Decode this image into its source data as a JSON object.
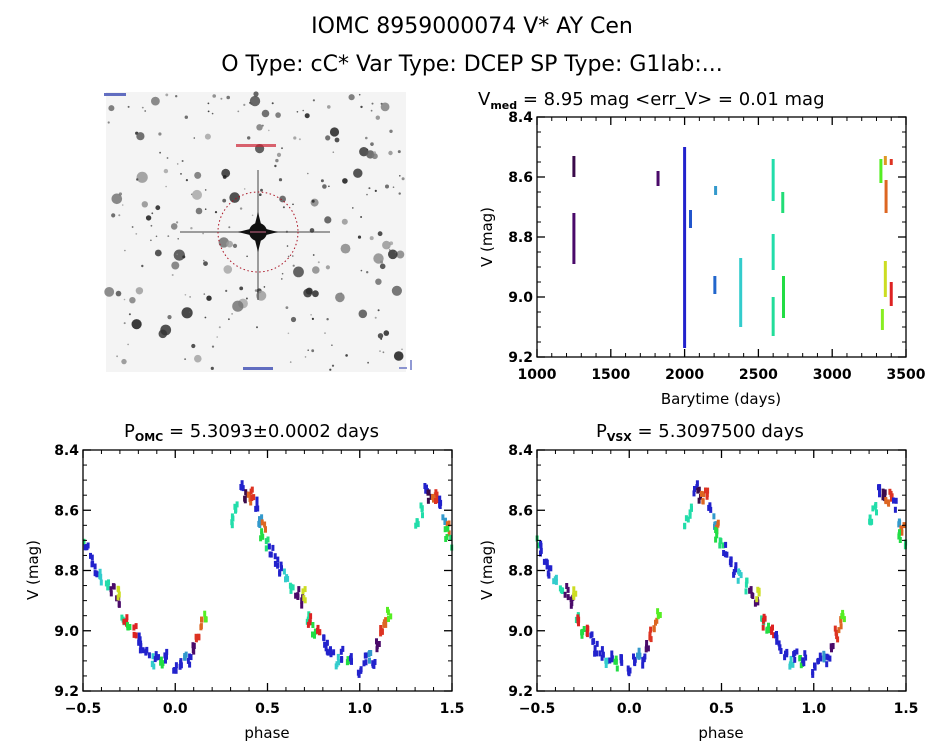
{
  "header": {
    "title": "IOMC 8959000074    V* AY Cen",
    "subtitle": "O Type: cC*   Var Type: DCEP   SP Type: G1Iab:..."
  },
  "finder_image": {
    "description": "Sky image centered on target with red dotted aperture circle"
  },
  "chart_data": [
    {
      "type": "scatter",
      "id": "light-curve",
      "title_main": "V",
      "title_sub": "med",
      "title_rest": " = 8.95 mag <err_V> = 0.01 mag",
      "xlabel": "Barytime (days)",
      "ylabel": "V (mag)",
      "xlim": [
        1000,
        3500
      ],
      "ylim": [
        8.4,
        9.2
      ],
      "y_inverted": true,
      "xticks": [
        1000,
        1500,
        2000,
        2500,
        3000,
        3500
      ],
      "yticks": [
        "8.4",
        "8.6",
        "8.8",
        "9.0",
        "9.2"
      ],
      "segments": [
        {
          "x": 1250,
          "y0": 8.53,
          "y1": 8.6,
          "color": "#3a0a4a"
        },
        {
          "x": 1250,
          "y0": 8.72,
          "y1": 8.89,
          "color": "#4a0a6a"
        },
        {
          "x": 1820,
          "y0": 8.58,
          "y1": 8.63,
          "color": "#4a0a6a"
        },
        {
          "x": 2000,
          "y0": 8.5,
          "y1": 9.17,
          "color": "#2222cc"
        },
        {
          "x": 2040,
          "y0": 8.71,
          "y1": 8.77,
          "color": "#2255cc"
        },
        {
          "x": 2210,
          "y0": 8.63,
          "y1": 8.66,
          "color": "#3399cc"
        },
        {
          "x": 2205,
          "y0": 8.93,
          "y1": 8.99,
          "color": "#2266cc"
        },
        {
          "x": 2380,
          "y0": 8.87,
          "y1": 9.1,
          "color": "#33cccc"
        },
        {
          "x": 2600,
          "y0": 8.54,
          "y1": 8.68,
          "color": "#22ddaa"
        },
        {
          "x": 2600,
          "y0": 8.79,
          "y1": 8.91,
          "color": "#22ddaa"
        },
        {
          "x": 2600,
          "y0": 9.0,
          "y1": 9.13,
          "color": "#22dd99"
        },
        {
          "x": 2665,
          "y0": 8.65,
          "y1": 8.72,
          "color": "#22dd77"
        },
        {
          "x": 2670,
          "y0": 8.93,
          "y1": 9.07,
          "color": "#22dd44"
        },
        {
          "x": 3330,
          "y0": 8.54,
          "y1": 8.62,
          "color": "#55ee22"
        },
        {
          "x": 3340,
          "y0": 9.04,
          "y1": 9.11,
          "color": "#88ee22"
        },
        {
          "x": 3360,
          "y0": 8.53,
          "y1": 8.56,
          "color": "#dd9922"
        },
        {
          "x": 3365,
          "y0": 8.61,
          "y1": 8.72,
          "color": "#dd6622"
        },
        {
          "x": 3360,
          "y0": 8.88,
          "y1": 9.0,
          "color": "#ccdd22"
        },
        {
          "x": 3400,
          "y0": 8.54,
          "y1": 8.56,
          "color": "#dd3322"
        },
        {
          "x": 3400,
          "y0": 8.95,
          "y1": 9.03,
          "color": "#dd2222"
        }
      ]
    },
    {
      "type": "scatter",
      "id": "phase-omc",
      "title_main": "P",
      "title_sub": "OMC",
      "title_rest": " = 5.3093±0.0002 days",
      "xlabel": "phase",
      "ylabel": "V (mag)",
      "xlim": [
        -0.5,
        1.5
      ],
      "ylim": [
        8.4,
        9.2
      ],
      "y_inverted": true,
      "xticks": [
        "-0.5",
        "0.0",
        "0.5",
        "1.0",
        "1.5"
      ],
      "yticks": [
        "8.4",
        "8.6",
        "8.8",
        "9.0",
        "9.2"
      ]
    },
    {
      "type": "scatter",
      "id": "phase-vsx",
      "title_main": "P",
      "title_sub": "VSX",
      "title_rest": " = 5.3097500 days",
      "xlabel": "phase",
      "ylabel": "V (mag)",
      "xlim": [
        -0.5,
        1.5
      ],
      "ylim": [
        8.4,
        9.2
      ],
      "y_inverted": true,
      "xticks": [
        "-0.5",
        "0.0",
        "0.5",
        "1.0",
        "1.5"
      ],
      "yticks": [
        "8.4",
        "8.6",
        "8.8",
        "9.0",
        "9.2"
      ]
    }
  ],
  "phase_curve": {
    "description": "Folded light curve, one cycle (phase 0-1), repeated at -1 and +1",
    "points": [
      {
        "phase": 0.36,
        "v": 8.53,
        "color": "#2222cc"
      },
      {
        "phase": 0.38,
        "v": 8.55,
        "color": "#3a0a4a"
      },
      {
        "phase": 0.4,
        "v": 8.56,
        "color": "#dd6622"
      },
      {
        "phase": 0.42,
        "v": 8.55,
        "color": "#dd3322"
      },
      {
        "phase": 0.44,
        "v": 8.58,
        "color": "#2222cc"
      },
      {
        "phase": 0.33,
        "v": 8.6,
        "color": "#22ddaa"
      },
      {
        "phase": 0.31,
        "v": 8.64,
        "color": "#22ddaa"
      },
      {
        "phase": 0.46,
        "v": 8.64,
        "color": "#3399cc"
      },
      {
        "phase": 0.48,
        "v": 8.66,
        "color": "#dd6622"
      },
      {
        "phase": 0.47,
        "v": 8.68,
        "color": "#22dd44"
      },
      {
        "phase": 0.5,
        "v": 8.71,
        "color": "#22dd77"
      },
      {
        "phase": 0.52,
        "v": 8.73,
        "color": "#2222cc"
      },
      {
        "phase": 0.55,
        "v": 8.77,
        "color": "#2222cc"
      },
      {
        "phase": 0.57,
        "v": 8.8,
        "color": "#2222cc"
      },
      {
        "phase": 0.6,
        "v": 8.82,
        "color": "#33cccc"
      },
      {
        "phase": 0.63,
        "v": 8.85,
        "color": "#22ddaa"
      },
      {
        "phase": 0.66,
        "v": 8.87,
        "color": "#4a0a6a"
      },
      {
        "phase": 0.69,
        "v": 8.9,
        "color": "#4a0a6a"
      },
      {
        "phase": 0.7,
        "v": 8.88,
        "color": "#ccdd22"
      },
      {
        "phase": 0.72,
        "v": 8.96,
        "color": "#22dd99"
      },
      {
        "phase": 0.73,
        "v": 8.97,
        "color": "#dd2222"
      },
      {
        "phase": 0.75,
        "v": 9.0,
        "color": "#22dd44"
      },
      {
        "phase": 0.78,
        "v": 9.0,
        "color": "#dd2222"
      },
      {
        "phase": 0.8,
        "v": 9.03,
        "color": "#2222cc"
      },
      {
        "phase": 0.82,
        "v": 9.06,
        "color": "#2222cc"
      },
      {
        "phase": 0.85,
        "v": 9.08,
        "color": "#2222cc"
      },
      {
        "phase": 0.88,
        "v": 9.1,
        "color": "#33cccc"
      },
      {
        "phase": 0.9,
        "v": 9.08,
        "color": "#2222cc"
      },
      {
        "phase": 0.93,
        "v": 9.11,
        "color": "#22dd44"
      },
      {
        "phase": 0.95,
        "v": 9.09,
        "color": "#2222cc"
      },
      {
        "phase": 1.0,
        "v": 9.13,
        "color": "#2222cc"
      },
      {
        "phase": 1.03,
        "v": 9.1,
        "color": "#2222cc"
      },
      {
        "phase": 1.05,
        "v": 9.08,
        "color": "#3399cc"
      },
      {
        "phase": 1.08,
        "v": 9.1,
        "color": "#2222cc"
      },
      {
        "phase": 1.1,
        "v": 9.05,
        "color": "#4a0a6a"
      },
      {
        "phase": 1.12,
        "v": 9.01,
        "color": "#dd3322"
      },
      {
        "phase": 1.14,
        "v": 8.98,
        "color": "#dd6622"
      },
      {
        "phase": 1.16,
        "v": 8.95,
        "color": "#55ee22"
      }
    ]
  }
}
